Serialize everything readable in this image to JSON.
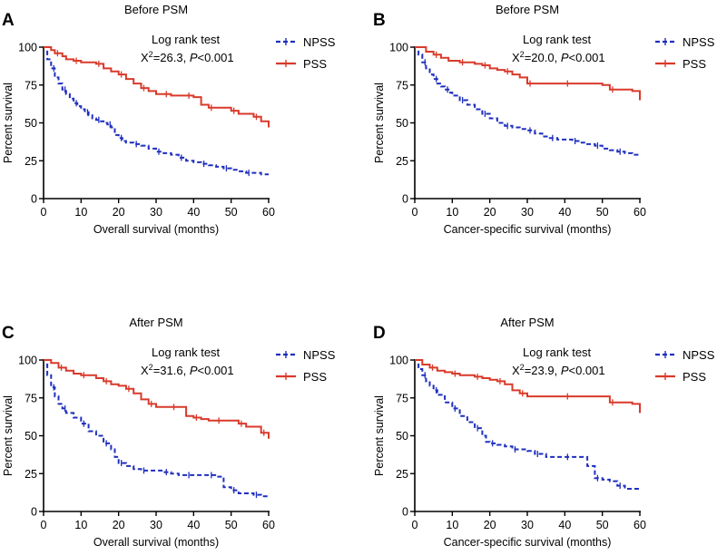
{
  "chart_data": [
    {
      "type": "line",
      "panel": "A",
      "title": "Before PSM",
      "xlabel": "Overall survival (months)",
      "ylabel": "Percent survival",
      "xlim": [
        0,
        60
      ],
      "ylim": [
        0,
        100
      ],
      "xticks": [
        "0",
        "10",
        "20",
        "30",
        "40",
        "50",
        "60"
      ],
      "yticks": [
        "0",
        "25",
        "50",
        "75",
        "100"
      ],
      "test": {
        "title": "Log rank test",
        "stat": "X",
        "sup": "2",
        "value": "=26.3, ",
        "p_label": "P",
        "p_value": "<0.001"
      },
      "series": [
        {
          "name": "NPSS",
          "color": "#1f2fbf",
          "style": "dashed",
          "x": [
            0,
            1,
            2,
            3,
            4,
            5,
            6,
            7,
            8,
            9,
            10,
            11,
            12,
            13,
            14,
            15,
            16,
            17,
            18,
            19,
            20,
            21,
            22,
            24,
            26,
            28,
            30,
            32,
            34,
            36,
            38,
            40,
            42,
            44,
            46,
            48,
            50,
            52,
            54,
            56,
            58,
            60
          ],
          "y": [
            100,
            92,
            86,
            80,
            76,
            72,
            69,
            66,
            63,
            61,
            59,
            57,
            55,
            53,
            52,
            51,
            50,
            49,
            47,
            42,
            40,
            38,
            37,
            36,
            35,
            33,
            31,
            30,
            29,
            27,
            25,
            24,
            23,
            22,
            21,
            20,
            19,
            18,
            17,
            17,
            16,
            16
          ]
        },
        {
          "name": "PSS",
          "color": "#d93a2b",
          "style": "solid",
          "x": [
            0,
            2,
            3,
            5,
            6,
            8,
            10,
            12,
            14,
            16,
            18,
            20,
            22,
            24,
            26,
            28,
            30,
            32,
            34,
            36,
            38,
            40,
            42,
            44,
            46,
            48,
            50,
            52,
            54,
            56,
            58,
            60
          ],
          "y": [
            100,
            98,
            96,
            94,
            92,
            91,
            90,
            90,
            89,
            86,
            84,
            82,
            79,
            76,
            73,
            71,
            69,
            69,
            68,
            68,
            68,
            67,
            62,
            60,
            60,
            60,
            58,
            56,
            56,
            54,
            51,
            47
          ]
        }
      ]
    },
    {
      "type": "line",
      "panel": "B",
      "title": "Before PSM",
      "xlabel": "Cancer-specific survival (months)",
      "ylabel": "Percent survival",
      "xlim": [
        0,
        60
      ],
      "ylim": [
        0,
        100
      ],
      "xticks": [
        "0",
        "10",
        "20",
        "30",
        "40",
        "50",
        "60"
      ],
      "yticks": [
        "0",
        "25",
        "50",
        "75",
        "100"
      ],
      "test": {
        "title": "Log rank test",
        "stat": "X",
        "sup": "2",
        "value": "=20.0, ",
        "p_label": "P",
        "p_value": "<0.001"
      },
      "series": [
        {
          "name": "NPSS",
          "color": "#1f2fbf",
          "style": "dashed",
          "x": [
            0,
            1,
            2,
            3,
            4,
            5,
            6,
            7,
            8,
            9,
            10,
            12,
            14,
            16,
            18,
            20,
            22,
            24,
            26,
            28,
            30,
            32,
            34,
            36,
            38,
            40,
            42,
            44,
            46,
            48,
            50,
            52,
            54,
            56,
            58,
            60
          ],
          "y": [
            100,
            95,
            90,
            86,
            82,
            79,
            76,
            74,
            72,
            70,
            68,
            65,
            62,
            59,
            56,
            53,
            50,
            48,
            47,
            46,
            45,
            43,
            41,
            40,
            39,
            39,
            38,
            37,
            36,
            35,
            33,
            32,
            31,
            30,
            29,
            29
          ]
        },
        {
          "name": "PSS",
          "color": "#d93a2b",
          "style": "solid",
          "x": [
            0,
            3,
            5,
            7,
            9,
            12,
            14,
            16,
            18,
            20,
            22,
            24,
            26,
            28,
            30,
            32,
            35,
            40,
            45,
            50,
            52,
            55,
            58,
            60
          ],
          "y": [
            100,
            97,
            95,
            93,
            91,
            90,
            90,
            89,
            88,
            86,
            85,
            84,
            82,
            80,
            76,
            76,
            76,
            76,
            76,
            75,
            72,
            72,
            71,
            65
          ]
        }
      ]
    },
    {
      "type": "line",
      "panel": "C",
      "title": "After PSM",
      "xlabel": "Overall survival (months)",
      "ylabel": "Percent survival",
      "xlim": [
        0,
        60
      ],
      "ylim": [
        0,
        100
      ],
      "xticks": [
        "0",
        "10",
        "20",
        "30",
        "40",
        "50",
        "60"
      ],
      "yticks": [
        "0",
        "25",
        "50",
        "75",
        "100"
      ],
      "test": {
        "title": "Log rank test",
        "stat": "X",
        "sup": "2",
        "value": "=31.6, ",
        "p_label": "P",
        "p_value": "<0.001"
      },
      "series": [
        {
          "name": "NPSS",
          "color": "#1f2fbf",
          "style": "dashed",
          "x": [
            0,
            1,
            2,
            3,
            4,
            5,
            6,
            8,
            10,
            12,
            14,
            16,
            18,
            19,
            20,
            22,
            24,
            26,
            28,
            30,
            32,
            34,
            36,
            38,
            40,
            42,
            44,
            46,
            48,
            50,
            52,
            54,
            56,
            58,
            60
          ],
          "y": [
            100,
            90,
            82,
            76,
            71,
            68,
            65,
            62,
            58,
            53,
            50,
            45,
            41,
            36,
            32,
            30,
            28,
            27,
            27,
            27,
            26,
            25,
            24,
            24,
            24,
            24,
            24,
            23,
            16,
            14,
            12,
            12,
            11,
            10,
            9
          ]
        },
        {
          "name": "PSS",
          "color": "#d93a2b",
          "style": "solid",
          "x": [
            0,
            2,
            4,
            6,
            8,
            10,
            12,
            14,
            16,
            18,
            20,
            22,
            24,
            26,
            28,
            30,
            32,
            34,
            36,
            38,
            40,
            42,
            44,
            46,
            48,
            50,
            52,
            54,
            56,
            58,
            60
          ],
          "y": [
            100,
            98,
            95,
            93,
            91,
            90,
            90,
            88,
            86,
            84,
            83,
            81,
            78,
            74,
            71,
            69,
            69,
            69,
            69,
            63,
            62,
            61,
            60,
            60,
            60,
            60,
            58,
            56,
            56,
            52,
            48
          ]
        }
      ]
    },
    {
      "type": "line",
      "panel": "D",
      "title": "After PSM",
      "xlabel": "Cancer-specific survival (months)",
      "ylabel": "Percent survival",
      "xlim": [
        0,
        60
      ],
      "ylim": [
        0,
        100
      ],
      "xticks": [
        "0",
        "10",
        "20",
        "30",
        "40",
        "50",
        "60"
      ],
      "yticks": [
        "0",
        "25",
        "50",
        "75",
        "100"
      ],
      "test": {
        "title": "Log rank test",
        "stat": "X",
        "sup": "2",
        "value": "=23.9, ",
        "p_label": "P",
        "p_value": "<0.001"
      },
      "series": [
        {
          "name": "NPSS",
          "color": "#1f2fbf",
          "style": "dashed",
          "x": [
            0,
            1,
            2,
            3,
            4,
            5,
            6,
            8,
            10,
            12,
            14,
            16,
            18,
            19,
            20,
            22,
            24,
            26,
            28,
            30,
            32,
            35,
            38,
            40,
            44,
            46,
            48,
            50,
            52,
            54,
            56,
            58,
            60
          ],
          "y": [
            100,
            94,
            90,
            86,
            83,
            80,
            77,
            72,
            68,
            63,
            59,
            55,
            50,
            46,
            45,
            44,
            43,
            41,
            41,
            40,
            38,
            36,
            36,
            36,
            36,
            30,
            22,
            21,
            20,
            17,
            15,
            15,
            15
          ]
        },
        {
          "name": "PSS",
          "color": "#d93a2b",
          "style": "solid",
          "x": [
            0,
            2,
            4,
            6,
            8,
            10,
            12,
            14,
            16,
            18,
            20,
            22,
            24,
            26,
            28,
            30,
            34,
            40,
            45,
            50,
            52,
            55,
            58,
            60
          ],
          "y": [
            100,
            97,
            95,
            93,
            92,
            91,
            90,
            90,
            89,
            88,
            87,
            86,
            84,
            80,
            78,
            76,
            76,
            76,
            76,
            76,
            72,
            72,
            71,
            65
          ]
        }
      ]
    }
  ]
}
